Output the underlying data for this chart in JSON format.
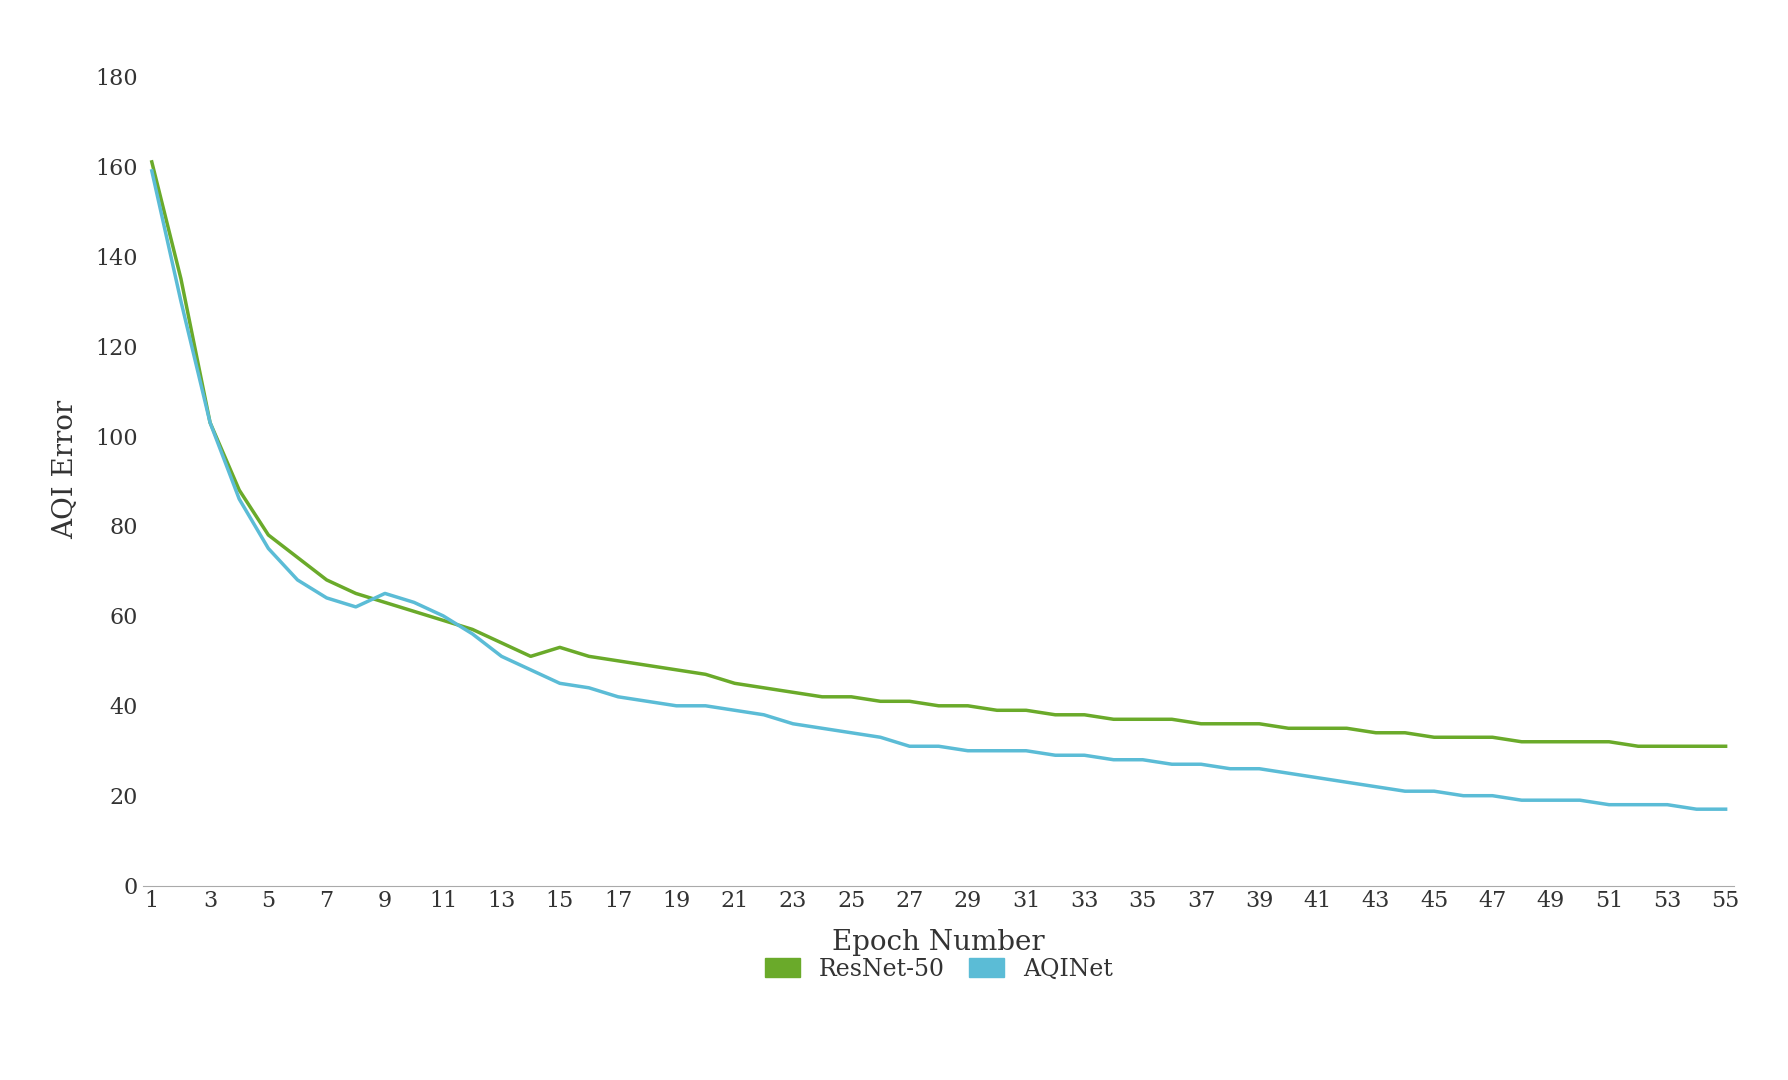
{
  "resnet50": [
    161,
    135,
    103,
    88,
    78,
    73,
    68,
    65,
    63,
    61,
    59,
    57,
    54,
    51,
    53,
    51,
    50,
    49,
    48,
    47,
    45,
    44,
    43,
    42,
    42,
    41,
    41,
    40,
    40,
    39,
    39,
    38,
    38,
    37,
    37,
    37,
    36,
    36,
    36,
    35,
    35,
    35,
    34,
    34,
    33,
    33,
    33,
    32,
    32,
    32,
    32,
    31,
    31,
    31,
    31
  ],
  "aqinet": [
    159,
    130,
    103,
    86,
    75,
    68,
    64,
    62,
    65,
    63,
    60,
    56,
    51,
    48,
    45,
    44,
    42,
    41,
    40,
    40,
    39,
    38,
    36,
    35,
    34,
    33,
    31,
    31,
    30,
    30,
    30,
    29,
    29,
    28,
    28,
    27,
    27,
    26,
    26,
    25,
    24,
    23,
    22,
    21,
    21,
    20,
    20,
    19,
    19,
    19,
    18,
    18,
    18,
    17,
    17
  ],
  "x": [
    1,
    2,
    3,
    4,
    5,
    6,
    7,
    8,
    9,
    10,
    11,
    12,
    13,
    14,
    15,
    16,
    17,
    18,
    19,
    20,
    21,
    22,
    23,
    24,
    25,
    26,
    27,
    28,
    29,
    30,
    31,
    32,
    33,
    34,
    35,
    36,
    37,
    38,
    39,
    40,
    41,
    42,
    43,
    44,
    45,
    46,
    47,
    48,
    49,
    50,
    51,
    52,
    53,
    54,
    55
  ],
  "xticks": [
    1,
    3,
    5,
    7,
    9,
    11,
    13,
    15,
    17,
    19,
    21,
    23,
    25,
    27,
    29,
    31,
    33,
    35,
    37,
    39,
    41,
    43,
    45,
    47,
    49,
    51,
    53,
    55
  ],
  "yticks": [
    0,
    20,
    40,
    60,
    80,
    100,
    120,
    140,
    160,
    180
  ],
  "ylim": [
    0,
    185
  ],
  "xlim": [
    1,
    55
  ],
  "xlabel": "Epoch Number",
  "ylabel": "AQI Error",
  "resnet_color": "#6aaa2a",
  "aqinet_color": "#5bbcd6",
  "resnet_label": "ResNet-50",
  "aqinet_label": "AQINet",
  "linewidth": 2.5,
  "legend_fontsize": 17,
  "tick_fontsize": 16,
  "label_fontsize": 20,
  "background_color": "#ffffff",
  "font_family": "serif",
  "text_color": "#333333"
}
